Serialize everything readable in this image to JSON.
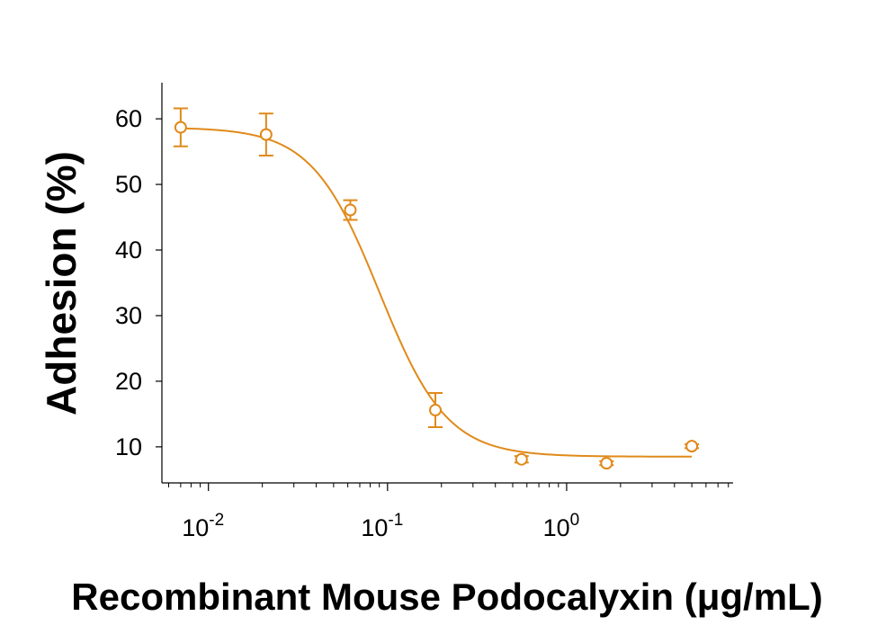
{
  "chart_data": {
    "type": "scatter",
    "title": "",
    "xlabel": "Recombinant Mouse Podocalyxin (μg/mL)",
    "ylabel": "Adhesion (%)",
    "x_scale": "log",
    "xlim": [
      0.0055,
      8.5
    ],
    "ylim": [
      4.5,
      65.5
    ],
    "y_ticks": [
      10,
      20,
      30,
      40,
      50,
      60
    ],
    "x_ticks": [
      {
        "value": 0.01,
        "base": "10",
        "exp": "-2"
      },
      {
        "value": 0.1,
        "base": "10",
        "exp": "-1"
      },
      {
        "value": 1,
        "base": "10",
        "exp": "0"
      }
    ],
    "grid": false,
    "legend": "none",
    "color": "#e08a1a",
    "series": [
      {
        "points": [
          {
            "x": 0.007,
            "y": 58.7,
            "err": 2.9
          },
          {
            "x": 0.021,
            "y": 57.6,
            "err": 3.2
          },
          {
            "x": 0.062,
            "y": 46.1,
            "err": 1.5
          },
          {
            "x": 0.185,
            "y": 15.6,
            "err": 2.6
          },
          {
            "x": 0.56,
            "y": 8.1,
            "err": 0.5
          },
          {
            "x": 1.67,
            "y": 7.5,
            "err": 0.3
          },
          {
            "x": 5.0,
            "y": 10.1,
            "err": 0.3
          }
        ],
        "fit_curve": {
          "model": "four-parameter logistic",
          "top": 58.7,
          "bottom": 8.5,
          "ec50": 0.09,
          "hill": 2.3,
          "x_range": [
            0.007,
            5.0
          ]
        }
      }
    ]
  }
}
